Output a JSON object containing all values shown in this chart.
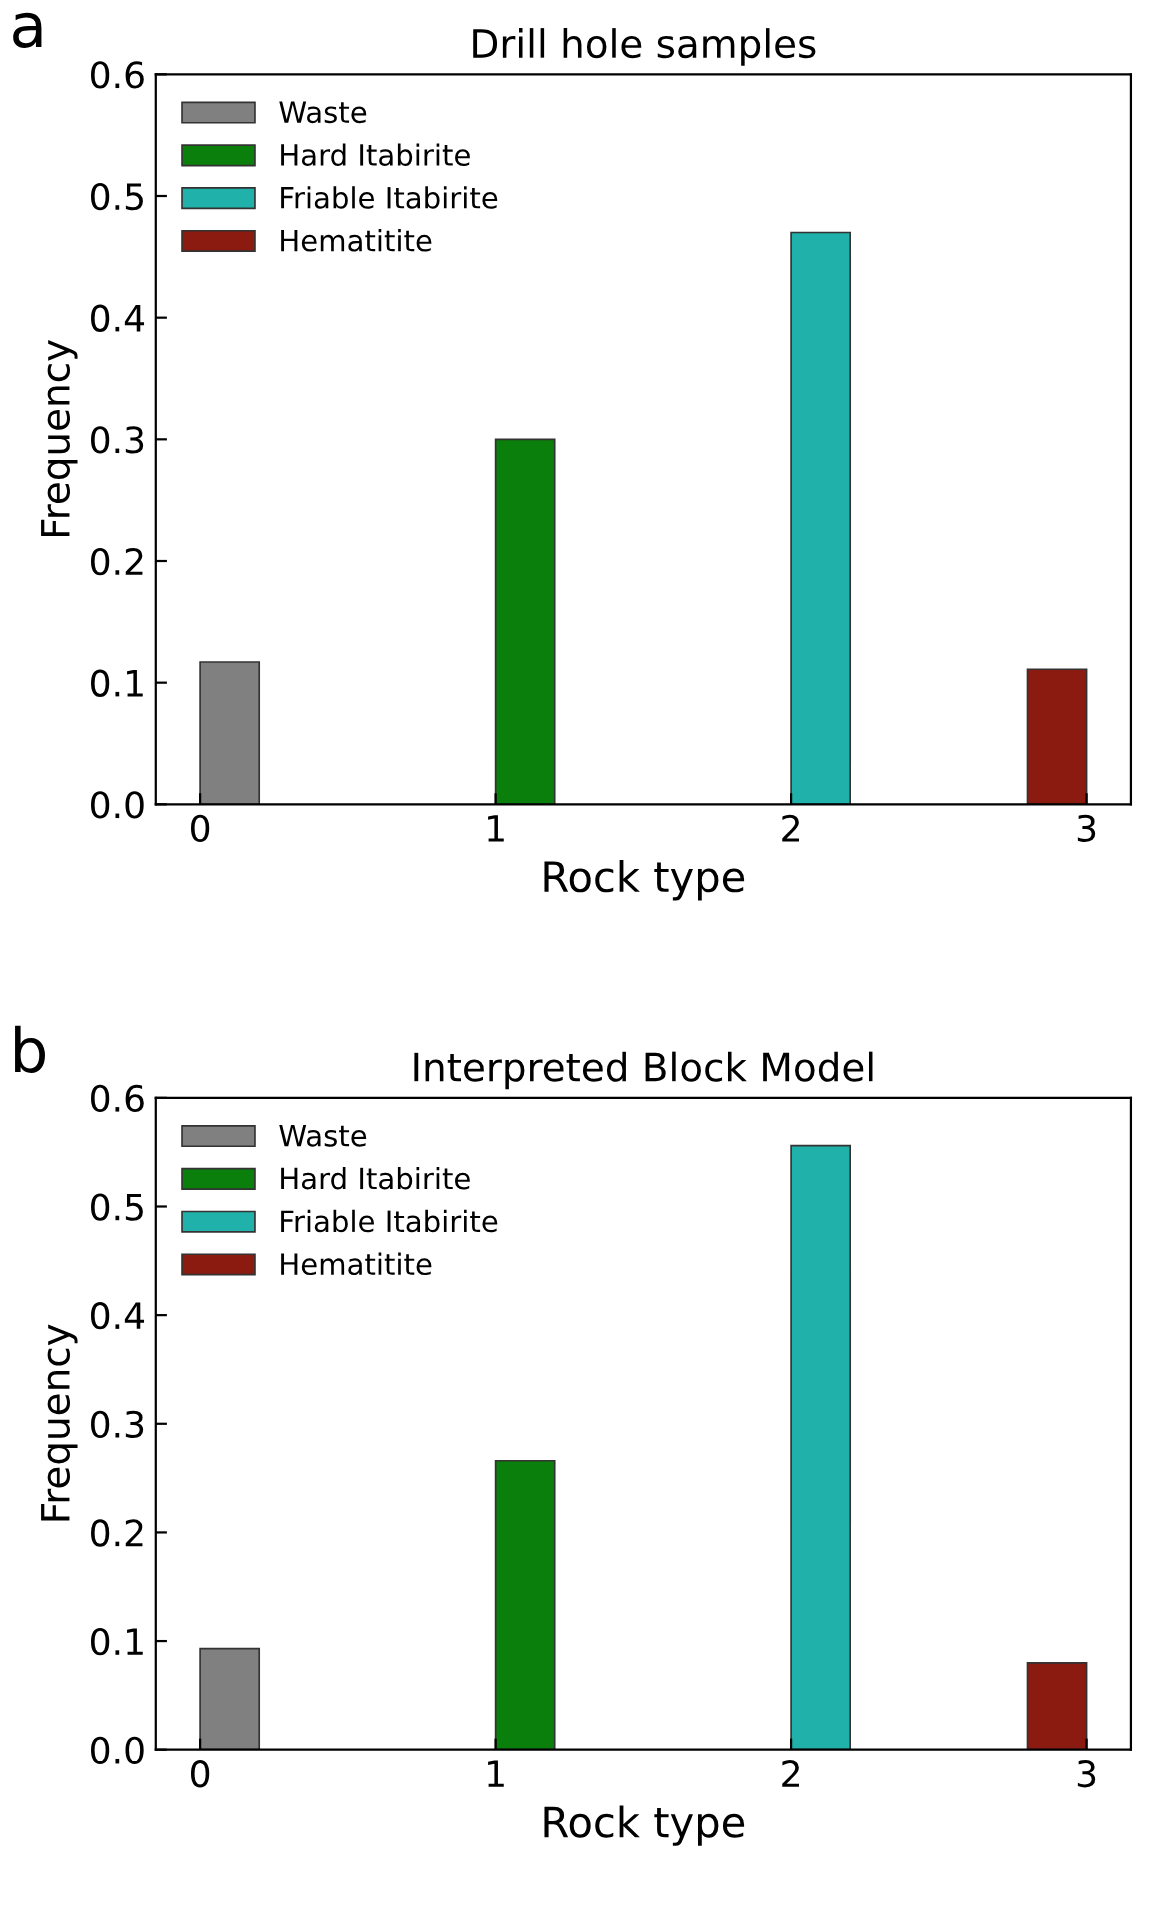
{
  "chart_data": [
    {
      "type": "bar",
      "title": "Drill hole samples",
      "xlabel": "Rock type",
      "ylabel": "Frequency",
      "annotations": [
        "a"
      ],
      "xlim": [
        -0.15,
        3.15
      ],
      "xticks": [
        0,
        1,
        2,
        3
      ],
      "ylim": [
        0,
        0.6
      ],
      "yticks": [
        {
          "value": 0,
          "label": "0.0"
        },
        0.1,
        0.2,
        0.3,
        0.4,
        0.5,
        0.6
      ],
      "legend": "top left",
      "grid": false,
      "series": [
        {
          "name": "Waste",
          "color": "#808080",
          "x": [
            0.1
          ],
          "values": [
            0.117
          ]
        },
        {
          "name": "Hard Itabirite",
          "color": "#0b7f0b",
          "x": [
            1.1
          ],
          "values": [
            0.3
          ]
        },
        {
          "name": "Friable Itabirite",
          "color": "#20b2aa",
          "x": [
            2.1
          ],
          "values": [
            0.47
          ]
        },
        {
          "name": "Hematitite",
          "color": "#8b1a10",
          "x": [
            2.9
          ],
          "values": [
            0.111
          ]
        }
      ]
    },
    {
      "type": "bar",
      "title": "Interpreted Block Model",
      "xlabel": "Rock type",
      "ylabel": "Frequency",
      "annotations": [
        "b"
      ],
      "xlim": [
        -0.15,
        3.15
      ],
      "xticks": [
        0,
        1,
        2,
        3
      ],
      "ylim": [
        0,
        0.6
      ],
      "yticks": [
        {
          "value": 0,
          "label": "0.0"
        },
        0.1,
        0.2,
        0.3,
        0.4,
        0.5,
        0.6
      ],
      "legend": "top left",
      "grid": false,
      "series": [
        {
          "name": "Waste",
          "color": "#808080",
          "x": [
            0.1
          ],
          "values": [
            0.093
          ]
        },
        {
          "name": "Hard Itabirite",
          "color": "#0b7f0b",
          "x": [
            1.1
          ],
          "values": [
            0.266
          ]
        },
        {
          "name": "Friable Itabirite",
          "color": "#20b2aa",
          "x": [
            2.1
          ],
          "values": [
            0.556
          ]
        },
        {
          "name": "Hematitite",
          "color": "#8b1a10",
          "x": [
            2.9
          ],
          "values": [
            0.08
          ]
        }
      ]
    }
  ]
}
